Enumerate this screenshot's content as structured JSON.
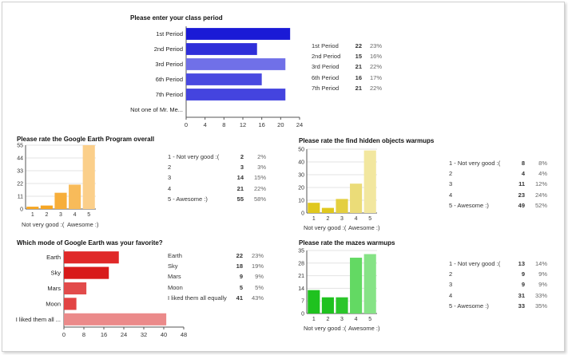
{
  "chart_data": [
    {
      "id": "class_period",
      "type": "bar",
      "orientation": "horizontal",
      "title": "Please enter your class period",
      "categories": [
        "1st Period",
        "2nd Period",
        "3rd Period",
        "6th Period",
        "7th Period",
        "Not one of Mr. Me..."
      ],
      "values": [
        22,
        15,
        21,
        16,
        21,
        0
      ],
      "percents": [
        "23%",
        "16%",
        "22%",
        "17%",
        "22%",
        ""
      ],
      "colors": [
        "#1a1ad6",
        "#2f2fd9",
        "#7070e8",
        "#4949e0",
        "#4444df",
        "#cccccc"
      ],
      "xlim": [
        0,
        24
      ],
      "ticks": [
        0,
        4,
        8,
        12,
        16,
        20,
        24
      ],
      "stats": [
        {
          "label": "1st Period",
          "count": "22",
          "pct": "23%"
        },
        {
          "label": "2nd Period",
          "count": "15",
          "pct": "16%"
        },
        {
          "label": "3rd Period",
          "count": "21",
          "pct": "22%"
        },
        {
          "label": "6th Period",
          "count": "16",
          "pct": "17%"
        },
        {
          "label": "7th Period",
          "count": "21",
          "pct": "22%"
        }
      ]
    },
    {
      "id": "google_earth_overall",
      "type": "bar",
      "orientation": "vertical",
      "title": "Please rate the Google Earth Program overall",
      "categories": [
        "1",
        "2",
        "3",
        "4",
        "5"
      ],
      "values": [
        2,
        3,
        14,
        21,
        55
      ],
      "colors": [
        "#f6a623",
        "#f6a623",
        "#f7ae3a",
        "#f8bb5a",
        "#fbcf8a"
      ],
      "ylim": [
        0,
        55
      ],
      "ticks": [
        0,
        11,
        22,
        33,
        44,
        55
      ],
      "scale_low": "Not very good :(",
      "scale_high": "Awesome :)",
      "stats": [
        {
          "label": "1 -  Not very good :(",
          "count": "2",
          "pct": "2%"
        },
        {
          "label": "2",
          "count": "3",
          "pct": "3%"
        },
        {
          "label": "3",
          "count": "14",
          "pct": "15%"
        },
        {
          "label": "4",
          "count": "21",
          "pct": "22%"
        },
        {
          "label": "5 -  Awesome :)",
          "count": "55",
          "pct": "58%"
        }
      ]
    },
    {
      "id": "hidden_objects",
      "type": "bar",
      "orientation": "vertical",
      "title": "Please rate the find hidden objects warmups",
      "categories": [
        "1",
        "2",
        "3",
        "4",
        "5"
      ],
      "values": [
        8,
        4,
        11,
        23,
        49
      ],
      "colors": [
        "#e0c81e",
        "#e0c81e",
        "#e4cf40",
        "#ebdc78",
        "#f2e79f"
      ],
      "ylim": [
        0,
        50
      ],
      "ticks": [
        0,
        10,
        20,
        30,
        40,
        50
      ],
      "scale_low": "Not very good :(",
      "scale_high": "Awesome :)",
      "stats": [
        {
          "label": "1 -  Not very good :(",
          "count": "8",
          "pct": "8%"
        },
        {
          "label": "2",
          "count": "4",
          "pct": "4%"
        },
        {
          "label": "3",
          "count": "11",
          "pct": "12%"
        },
        {
          "label": "4",
          "count": "23",
          "pct": "24%"
        },
        {
          "label": "5 -  Awesome :)",
          "count": "49",
          "pct": "52%"
        }
      ]
    },
    {
      "id": "favorite_mode",
      "type": "bar",
      "orientation": "horizontal",
      "title": "Which mode of Google Earth was your favorite?",
      "categories": [
        "Earth",
        "Sky",
        "Mars",
        "Moon",
        "I liked them all ..."
      ],
      "values": [
        22,
        18,
        9,
        5,
        41
      ],
      "colors": [
        "#e02828",
        "#d81a1a",
        "#e24b4b",
        "#e24444",
        "#eb8a8a"
      ],
      "xlim": [
        0,
        48
      ],
      "ticks": [
        0,
        8,
        16,
        24,
        32,
        40,
        48
      ],
      "stats": [
        {
          "label": "Earth",
          "count": "22",
          "pct": "23%"
        },
        {
          "label": "Sky",
          "count": "18",
          "pct": "19%"
        },
        {
          "label": "Mars",
          "count": "9",
          "pct": "9%"
        },
        {
          "label": "Moon",
          "count": "5",
          "pct": "5%"
        },
        {
          "label": "I liked them all equally",
          "count": "41",
          "pct": "43%"
        }
      ]
    },
    {
      "id": "mazes",
      "type": "bar",
      "orientation": "vertical",
      "title": "Please rate the mazes warmups",
      "categories": [
        "1",
        "2",
        "3",
        "4",
        "5"
      ],
      "values": [
        13,
        9,
        9,
        31,
        33
      ],
      "colors": [
        "#1fc21f",
        "#1fc21f",
        "#2bc62b",
        "#63d963",
        "#86e386"
      ],
      "ylim": [
        0,
        35
      ],
      "ticks": [
        0,
        7,
        14,
        21,
        28,
        35
      ],
      "scale_low": "Not very good :(",
      "scale_high": "Awesome :)",
      "stats": [
        {
          "label": "1 -  Not very good :(",
          "count": "13",
          "pct": "14%"
        },
        {
          "label": "2",
          "count": "9",
          "pct": "9%"
        },
        {
          "label": "3",
          "count": "9",
          "pct": "9%"
        },
        {
          "label": "4",
          "count": "31",
          "pct": "33%"
        },
        {
          "label": "5 -  Awesome :)",
          "count": "33",
          "pct": "35%"
        }
      ]
    }
  ]
}
